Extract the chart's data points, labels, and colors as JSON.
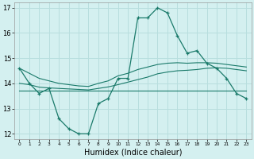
{
  "x": [
    0,
    1,
    2,
    3,
    4,
    5,
    6,
    7,
    8,
    9,
    10,
    11,
    12,
    13,
    14,
    15,
    16,
    17,
    18,
    19,
    20,
    21,
    22,
    23
  ],
  "y_main": [
    14.6,
    14.0,
    13.6,
    13.8,
    12.6,
    12.2,
    12.0,
    12.0,
    13.2,
    13.4,
    14.2,
    14.2,
    16.6,
    16.6,
    17.0,
    16.8,
    15.9,
    15.2,
    15.3,
    14.8,
    14.6,
    14.2,
    13.6,
    13.4
  ],
  "y_line_flat": [
    13.7,
    13.7,
    13.7,
    13.7,
    13.7,
    13.7,
    13.7,
    13.7,
    13.7,
    13.7,
    13.7,
    13.7,
    13.7,
    13.7,
    13.7,
    13.7,
    13.7,
    13.7,
    13.7,
    13.7,
    13.7,
    13.7,
    13.7,
    13.7
  ],
  "y_line_mid": [
    14.0,
    13.95,
    13.85,
    13.82,
    13.8,
    13.78,
    13.76,
    13.74,
    13.8,
    13.86,
    13.95,
    14.05,
    14.15,
    14.25,
    14.38,
    14.45,
    14.5,
    14.52,
    14.55,
    14.6,
    14.62,
    14.6,
    14.55,
    14.5
  ],
  "y_line_top": [
    14.6,
    14.4,
    14.2,
    14.1,
    14.0,
    13.95,
    13.9,
    13.88,
    14.0,
    14.1,
    14.3,
    14.4,
    14.55,
    14.65,
    14.75,
    14.8,
    14.82,
    14.8,
    14.82,
    14.82,
    14.8,
    14.75,
    14.7,
    14.65
  ],
  "color_main": "#1a7a6a",
  "color_lines": "#1a7a6a",
  "bg_color": "#d4f0f0",
  "grid_color": "#b8dede",
  "ylim": [
    11.8,
    17.2
  ],
  "yticks": [
    12,
    13,
    14,
    15,
    16,
    17
  ],
  "xlabel": "Humidex (Indice chaleur)"
}
